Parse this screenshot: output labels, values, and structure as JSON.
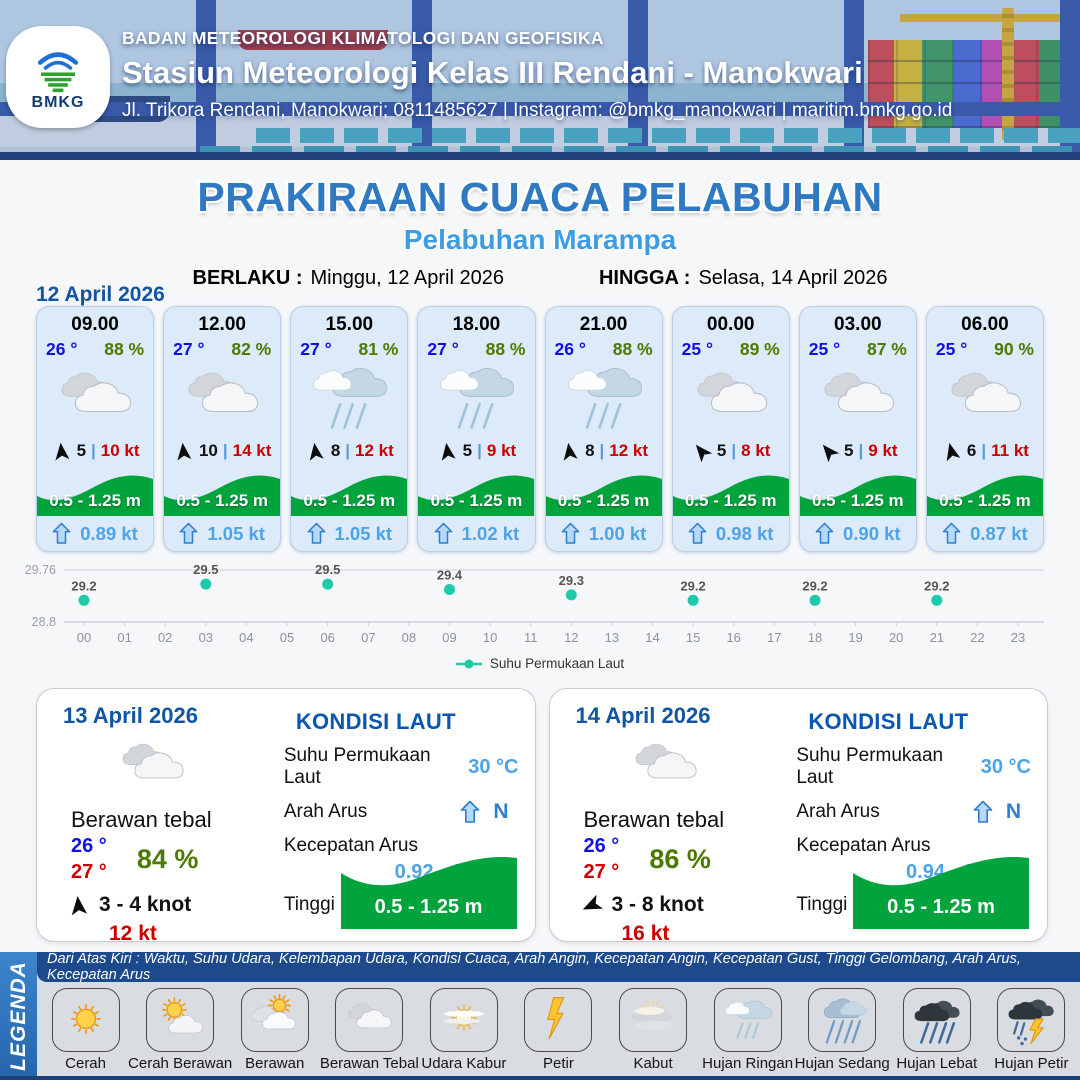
{
  "header": {
    "org": "BADAN METEOROLOGI KLIMATOLOGI DAN GEOFISIKA",
    "station": "Stasiun Meteorologi Kelas III Rendani - Manokwari",
    "contact": "Jl. Trikora Rendani, Manokwari; 0811485627 | Instagram: @bmkg_manokwari | maritim.bmkg.go.id",
    "logo_text": "BMKG"
  },
  "title": {
    "main": "PRAKIRAAN CUACA PELABUHAN",
    "subtitle": "Pelabuhan Marampa",
    "berlaku_label": "BERLAKU :",
    "berlaku_value": "Minggu, 12 April 2026",
    "hingga_label": "HINGGA :",
    "hingga_value": "Selasa, 14 April 2026"
  },
  "forecast_date": "12 April 2026",
  "hourly": [
    {
      "time": "09.00",
      "temp": "26 °",
      "humidity": "88 %",
      "icon": "berawan-tebal",
      "wind_speed": "5",
      "separator": "|",
      "gust": "10 kt",
      "wave": "0.5 - 1.25 m",
      "current": "0.89 kt",
      "wind_dir_deg": -6
    },
    {
      "time": "12.00",
      "temp": "27 °",
      "humidity": "82 %",
      "icon": "berawan-tebal",
      "wind_speed": "10",
      "separator": "|",
      "gust": "14 kt",
      "wave": "0.5 - 1.25 m",
      "current": "1.05 kt",
      "wind_dir_deg": -6
    },
    {
      "time": "15.00",
      "temp": "27 °",
      "humidity": "81 %",
      "icon": "hujan-ringan",
      "wind_speed": "8",
      "separator": "|",
      "gust": "12 kt",
      "wave": "0.5 - 1.25 m",
      "current": "1.05 kt",
      "wind_dir_deg": -8
    },
    {
      "time": "18.00",
      "temp": "27 °",
      "humidity": "88 %",
      "icon": "hujan-ringan",
      "wind_speed": "5",
      "separator": "|",
      "gust": "9 kt",
      "wave": "0.5 - 1.25 m",
      "current": "1.02 kt",
      "wind_dir_deg": -8
    },
    {
      "time": "21.00",
      "temp": "26 °",
      "humidity": "88 %",
      "icon": "hujan-ringan",
      "wind_speed": "8",
      "separator": "|",
      "gust": "12 kt",
      "wave": "0.5 - 1.25 m",
      "current": "1.00 kt",
      "wind_dir_deg": -8
    },
    {
      "time": "00.00",
      "temp": "25 °",
      "humidity": "89 %",
      "icon": "berawan-tebal",
      "wind_speed": "5",
      "separator": "|",
      "gust": "8 kt",
      "wave": "0.5 - 1.25 m",
      "current": "0.98 kt",
      "wind_dir_deg": -40
    },
    {
      "time": "03.00",
      "temp": "25 °",
      "humidity": "87 %",
      "icon": "berawan-tebal",
      "wind_speed": "5",
      "separator": "|",
      "gust": "9 kt",
      "wave": "0.5 - 1.25 m",
      "current": "0.90 kt",
      "wind_dir_deg": -40
    },
    {
      "time": "06.00",
      "temp": "25 °",
      "humidity": "90 %",
      "icon": "berawan-tebal",
      "wind_speed": "6",
      "separator": "|",
      "gust": "11 kt",
      "wave": "0.5 - 1.25 m",
      "current": "0.87 kt",
      "wind_dir_deg": -14
    }
  ],
  "chart_data": {
    "type": "scatter",
    "title": "",
    "legend": "Suhu Permukaan Laut",
    "x": [
      0,
      3,
      6,
      9,
      12,
      15,
      18,
      21
    ],
    "values": [
      29.2,
      29.5,
      29.5,
      29.4,
      29.3,
      29.2,
      29.2,
      29.2
    ],
    "x_ticks": [
      "00",
      "01",
      "02",
      "03",
      "04",
      "05",
      "06",
      "07",
      "08",
      "09",
      "10",
      "11",
      "12",
      "13",
      "14",
      "15",
      "16",
      "17",
      "18",
      "19",
      "20",
      "21",
      "22",
      "23"
    ],
    "y_ticks": [
      "29.76",
      "28.8"
    ],
    "ylim": [
      28.8,
      29.76
    ],
    "grid": "horizontal-only",
    "legend_position": "bottom-center",
    "color": "#1ec9ac"
  },
  "daily": [
    {
      "date": "13 April 2026",
      "icon": "berawan-tebal",
      "condition": "Berawan tebal",
      "temp_min": "26 °",
      "temp_max": "27 °",
      "humidity": "84 %",
      "wind": "3 - 4 knot",
      "gust": "12 kt",
      "wind_dir_deg": -6,
      "sea": {
        "title": "KONDISI LAUT",
        "sst_label": "Suhu Permukaan Laut",
        "sst": "30 °C",
        "dir_label": "Arah Arus",
        "dir": "N",
        "speed_label": "Kecepatan Arus",
        "speed": "0.92 - 1.11 kt",
        "wave_label": "Tinggi Gelombang",
        "wave": "0.5 - 1.25 m"
      }
    },
    {
      "date": "14 April 2026",
      "icon": "berawan-tebal",
      "condition": "Berawan tebal",
      "temp_min": "26 °",
      "temp_max": "27 °",
      "humidity": "86 %",
      "wind": "3 - 8 knot",
      "gust": "16 kt",
      "wind_dir_deg": -115,
      "sea": {
        "title": "KONDISI LAUT",
        "sst_label": "Suhu Permukaan Laut",
        "sst": "30 °C",
        "dir_label": "Arah Arus",
        "dir": "N",
        "speed_label": "Kecepatan Arus",
        "speed": "0.94 - 1.35 kt",
        "wave_label": "Tinggi Gelombang",
        "wave": "0.5 - 1.25 m"
      }
    }
  ],
  "legend": {
    "vertical_label": "LEGENDA",
    "description": "Dari Atas Kiri : Waktu, Suhu Udara, Kelembapan Udara, Kondisi Cuaca, Arah Angin, Kecepatan Angin, Kecepatan Gust, Tinggi Gelombang, Arah Arus, Kecepatan Arus",
    "items": [
      {
        "label": "Cerah",
        "icon": "cerah"
      },
      {
        "label": "Cerah Berawan",
        "icon": "cerah-berawan"
      },
      {
        "label": "Berawan",
        "icon": "berawan"
      },
      {
        "label": "Berawan Tebal",
        "icon": "berawan-tebal"
      },
      {
        "label": "Udara Kabur",
        "icon": "udara-kabur"
      },
      {
        "label": "Petir",
        "icon": "petir"
      },
      {
        "label": "Kabut",
        "icon": "kabut"
      },
      {
        "label": "Hujan Ringan",
        "icon": "hujan-ringan"
      },
      {
        "label": "Hujan Sedang",
        "icon": "hujan-sedang"
      },
      {
        "label": "Hujan Lebat",
        "icon": "hujan-lebat"
      },
      {
        "label": "Hujan Petir",
        "icon": "hujan-petir"
      }
    ]
  },
  "colors": {
    "accent_blue": "#2e79c1",
    "subtitle_blue": "#3e9ce2",
    "temp_blue": "#1010e6",
    "humidity_green": "#4c7a00",
    "gust_red": "#cc0000",
    "wave_green": "#00a33c",
    "current_blue": "#4da3e8",
    "chart_teal": "#1ec9ac",
    "panel_blue": "#1c4a8c"
  }
}
